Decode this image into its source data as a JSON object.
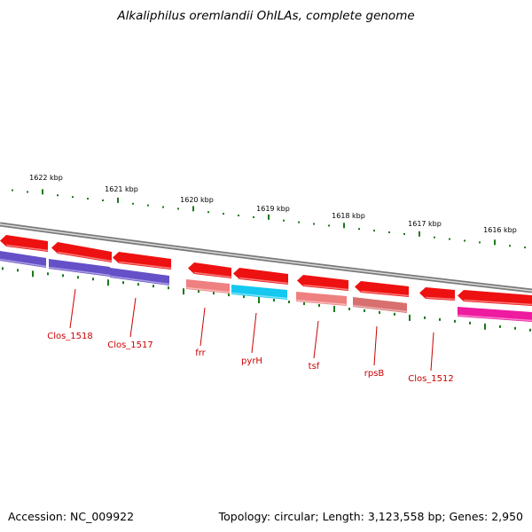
{
  "title": "Alkaliphilus oremlandii OhILAs, complete genome",
  "footer": {
    "accession": "Accession: NC_009922",
    "summary": "Topology: circular; Length: 3,123,558 bp; Genes: 2,950"
  },
  "colors": {
    "backbone": "#8c8c8c",
    "tick": "#1a7a1a",
    "label": "#cc0000",
    "gene_red": "#ee1111",
    "gene_purple": "#6650c8",
    "gene_salmon": "#ee8080",
    "gene_cyan": "#14c8f0",
    "gene_dusty": "#d87070",
    "gene_magenta": "#ee1aa0"
  },
  "scale_labels": [
    "1622 kbp",
    "1621 kbp",
    "1620 kbp",
    "1619 kbp",
    "1618 kbp",
    "1617 kbp",
    "1616 kbp"
  ],
  "gene_labels": [
    "Clos_1518",
    "Clos_1517",
    "frr",
    "pyrH",
    "tsf",
    "rpsB",
    "Clos_1512"
  ]
}
